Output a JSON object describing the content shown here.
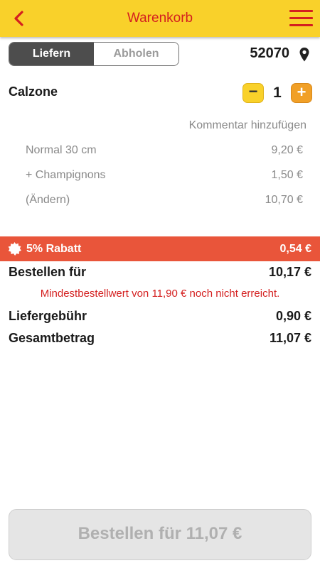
{
  "header": {
    "title": "Warenkorb",
    "back_icon": "chevron-left-icon",
    "menu_icon": "hamburger-menu-icon",
    "accent_color": "#d41f1f",
    "bar_color": "#f9d12a"
  },
  "delivery": {
    "tab_deliver": "Liefern",
    "tab_pickup": "Abholen",
    "selected": "Liefern",
    "postal_code": "52070"
  },
  "cart": {
    "item": {
      "name": "Calzone",
      "quantity": "1",
      "minus": "−",
      "plus": "+"
    },
    "comment_link": "Kommentar hinzufügen",
    "lines": [
      {
        "label": "Normal 30 cm",
        "price": "9,20 €"
      },
      {
        "label": "+ Champignons",
        "price": "1,50 €"
      },
      {
        "label": "(Ändern)",
        "price": "10,70 €"
      }
    ]
  },
  "discount": {
    "label": "5% Rabatt",
    "value": "0,54 €",
    "color": "#e9553a"
  },
  "summary": {
    "order_for_label": "Bestellen für",
    "order_for_value": "10,17 €",
    "warning": "Mindestbestellwert von 11,90 € noch nicht erreicht.",
    "delivery_fee_label": "Liefergebühr",
    "delivery_fee_value": "0,90 €",
    "total_label": "Gesamtbetrag",
    "total_value": "11,07 €"
  },
  "checkout": {
    "button_label": "Bestellen für 11,07 €"
  }
}
